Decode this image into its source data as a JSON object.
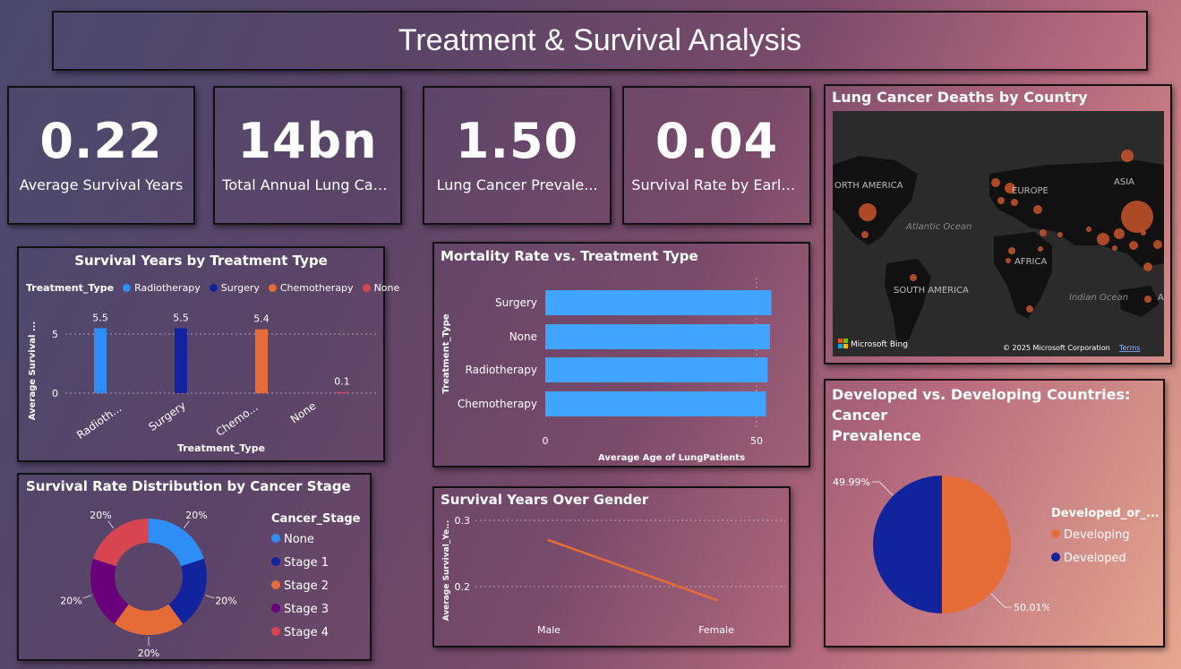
{
  "header": {
    "title": "Treatment & Survival Analysis"
  },
  "kpis": [
    {
      "value": "0.22",
      "label": "Average Survival Years"
    },
    {
      "value": "14bn",
      "label": "Total Annual Lung Canc..."
    },
    {
      "value": "1.50",
      "label": "Lung Cancer Prevale..."
    },
    {
      "value": "0.04",
      "label": "Survival Rate by Early De..."
    }
  ],
  "survival_chart": {
    "title": "Survival Years by Treatment Type",
    "legend_title": "Treatment_Type",
    "legend": [
      "Radiotherapy",
      "Surgery",
      "Chemotherapy",
      "None"
    ],
    "ylabel": "Average Survival ...",
    "xlabel": "Treatment_Type",
    "tick_labels": [
      "Radioth...",
      "Surgery",
      "Chemo...",
      "None"
    ],
    "y_ticks": [
      "0",
      "5"
    ],
    "data_labels": [
      "5.5",
      "5.5",
      "5.4",
      "0.1"
    ]
  },
  "mortality_chart": {
    "title": "Mortality Rate vs. Treatment Type",
    "ylabel": "Treatment_Type",
    "xlabel": "Average Age of LungPatients",
    "x_ticks": [
      "0",
      "50"
    ]
  },
  "map_panel": {
    "title": "Lung Cancer Deaths by Country",
    "labels": [
      "ORTH AMERICA",
      "EUROPE",
      "ASIA",
      "Atlantic Ocean",
      "AFRICA",
      "SOUTH AMERICA",
      "Indian Ocean",
      "A"
    ],
    "bing": "Microsoft Bing",
    "copyright": "© 2025 Microsoft Corporation",
    "terms": "Terms"
  },
  "stage_chart": {
    "title": "Survival Rate Distribution by Cancer Stage",
    "legend_title": "Cancer_Stage",
    "legend": [
      "None",
      "Stage 1",
      "Stage 2",
      "Stage 3",
      "Stage 4"
    ],
    "slice_labels": [
      "20%",
      "20%",
      "20%",
      "20%",
      "20%"
    ]
  },
  "gender_chart": {
    "title": "Survival Years Over Gender",
    "ylabel": "Average Survival_Ye...",
    "y_ticks": [
      "0.3",
      "0.2"
    ],
    "x_ticks": [
      "Male",
      "Female"
    ]
  },
  "dev_chart": {
    "title_line1": "Developed vs. Developing Countries: Cancer",
    "title_line2": "Prevalence",
    "legend_title": "Developed_or_...",
    "legend": [
      "Developing",
      "Developed"
    ],
    "slice_labels": [
      "50.01%",
      "49.99%"
    ]
  },
  "chart_data": [
    {
      "type": "bar",
      "title": "Survival Years by Treatment Type",
      "categories": [
        "Radiotherapy",
        "Surgery",
        "Chemotherapy",
        "None"
      ],
      "values": [
        5.5,
        5.5,
        5.4,
        0.1
      ],
      "colors": [
        "#2f8ef5",
        "#12239e",
        "#e66c37",
        "#d64550"
      ],
      "ylim": [
        0,
        6
      ]
    },
    {
      "type": "bar",
      "orientation": "horizontal",
      "title": "Mortality Rate vs. Treatment Type",
      "categories": [
        "Surgery",
        "None",
        "Radiotherapy",
        "Chemotherapy"
      ],
      "values": [
        53.5,
        53.2,
        52.6,
        52.2
      ],
      "color": "#41a4ff",
      "xlim": [
        0,
        55
      ]
    },
    {
      "type": "pie",
      "donut": true,
      "title": "Survival Rate Distribution by Cancer Stage",
      "categories": [
        "None",
        "Stage 1",
        "Stage 2",
        "Stage 3",
        "Stage 4"
      ],
      "values": [
        20,
        20,
        20,
        20,
        20
      ],
      "colors": [
        "#2f8ef5",
        "#12239e",
        "#e66c37",
        "#6b007b",
        "#d64550"
      ]
    },
    {
      "type": "line",
      "title": "Survival Years Over Gender",
      "categories": [
        "Male",
        "Female"
      ],
      "values": [
        0.27,
        0.18
      ],
      "color": "#e66c37",
      "ylim": [
        0.17,
        0.31
      ]
    },
    {
      "type": "pie",
      "title": "Developed vs. Developing Countries: Cancer Prevalence",
      "categories": [
        "Developing",
        "Developed"
      ],
      "values": [
        50.01,
        49.99
      ],
      "colors": [
        "#e66c37",
        "#12239e"
      ]
    }
  ]
}
